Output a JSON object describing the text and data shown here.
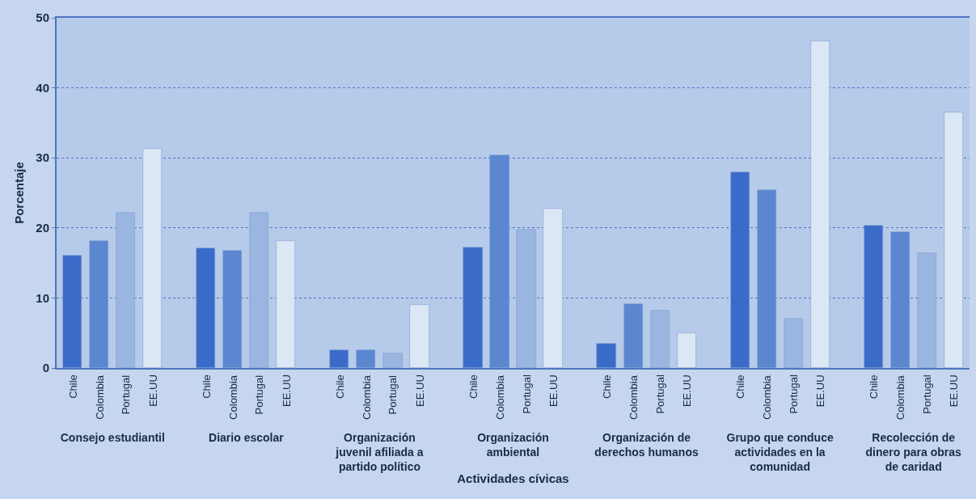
{
  "chart_data": {
    "type": "bar",
    "xlabel": "Actividades cívicas",
    "ylabel": "Porcentaje",
    "categories": [
      "Consejo estudiantil",
      "Diario escolar",
      "Organización juvenil afiliada a partido político",
      "Organización ambiental",
      "Organización de derechos humanos",
      "Grupo que conduce actividades en la comunidad",
      "Recolección de dinero para obras de caridad"
    ],
    "series": [
      {
        "name": "Chile",
        "color": "#3a6bc8",
        "values": [
          16.1,
          17.1,
          2.5,
          17.2,
          3.5,
          27.9,
          20.3
        ]
      },
      {
        "name": "Colombia",
        "color": "#5b86d0",
        "values": [
          18.1,
          16.7,
          2.5,
          30.4,
          9.1,
          25.4,
          19.4
        ]
      },
      {
        "name": "Portugal",
        "color": "#9ab5e0",
        "values": [
          22.2,
          22.2,
          2.1,
          19.8,
          8.2,
          7.1,
          16.4
        ]
      },
      {
        "name": "EE.UU",
        "color": "#dce7f5",
        "values": [
          31.3,
          18.1,
          9.0,
          22.8,
          5.0,
          46.7,
          36.5
        ]
      }
    ],
    "ylim": [
      0,
      50
    ],
    "yticks": [
      0,
      10,
      20,
      30,
      40,
      50
    ],
    "grid": "y"
  }
}
